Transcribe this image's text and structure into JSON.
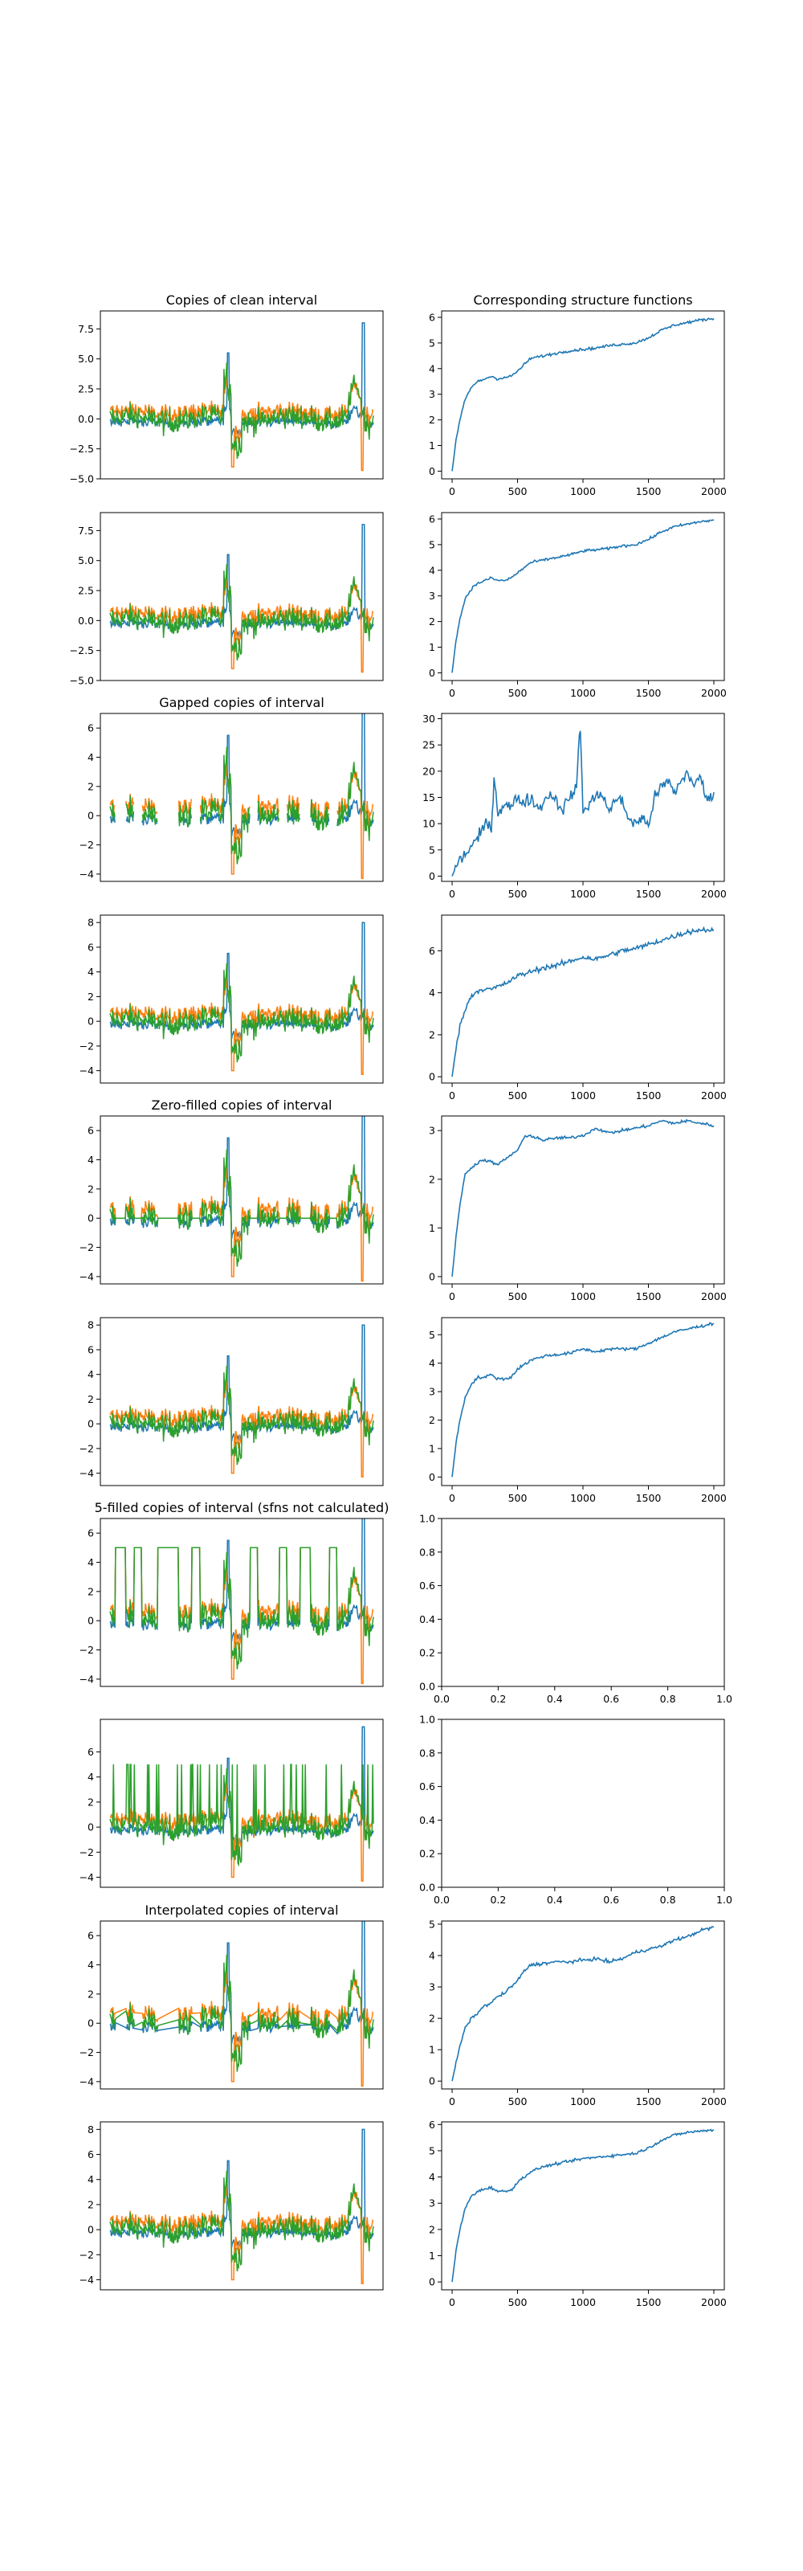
{
  "colors": {
    "series": [
      "#1f77b4",
      "#ff7f0e",
      "#2ca02c"
    ],
    "line": "#1f77b4",
    "axes": "#000000"
  },
  "chart_data": [
    {
      "type": "line",
      "title": "Copies of clean interval",
      "column": "left",
      "ylim": [
        -5,
        9
      ],
      "yticks": [
        -5.0,
        -2.5,
        0.0,
        2.5,
        5.0,
        7.5
      ],
      "yticklabels": [
        "−5.0",
        "−2.5",
        "0.0",
        "2.5",
        "5.0",
        "7.5"
      ],
      "xticks_shown": false,
      "series_count": 3,
      "style": "full",
      "grid": false
    },
    {
      "type": "line",
      "title": "Corresponding structure functions",
      "column": "right",
      "xlim": [
        -80,
        2080
      ],
      "ylim": [
        -0.3,
        6.25
      ],
      "xticks": [
        0,
        500,
        1000,
        1500,
        2000
      ],
      "xticklabels": [
        "0",
        "500",
        "1000",
        "1500",
        "2000"
      ],
      "yticks": [
        0,
        1,
        2,
        3,
        4,
        5,
        6
      ],
      "yticklabels": [
        "0",
        "1",
        "2",
        "3",
        "4",
        "5",
        "6"
      ],
      "x": [
        0,
        30,
        60,
        100,
        150,
        200,
        250,
        300,
        350,
        400,
        450,
        500,
        600,
        700,
        800,
        900,
        1000,
        1100,
        1200,
        1300,
        1400,
        1500,
        1600,
        1700,
        1800,
        1900,
        2000
      ],
      "y": [
        0,
        1.2,
        2.0,
        2.8,
        3.3,
        3.5,
        3.6,
        3.7,
        3.6,
        3.65,
        3.7,
        3.9,
        4.4,
        4.5,
        4.6,
        4.7,
        4.75,
        4.8,
        4.9,
        4.95,
        5.0,
        5.2,
        5.5,
        5.7,
        5.8,
        5.9,
        5.95
      ],
      "noise": 0.05
    },
    {
      "type": "line",
      "title": "",
      "column": "left",
      "ylim": [
        -5,
        9
      ],
      "yticks": [
        -5.0,
        -2.5,
        0.0,
        2.5,
        5.0,
        7.5
      ],
      "yticklabels": [
        "−5.0",
        "−2.5",
        "0.0",
        "2.5",
        "5.0",
        "7.5"
      ],
      "xticks_shown": false,
      "series_count": 3,
      "style": "full",
      "grid": false
    },
    {
      "type": "line",
      "title": "",
      "column": "right",
      "xlim": [
        -80,
        2080
      ],
      "ylim": [
        -0.3,
        6.25
      ],
      "xticks": [
        0,
        500,
        1000,
        1500,
        2000
      ],
      "xticklabels": [
        "0",
        "500",
        "1000",
        "1500",
        "2000"
      ],
      "yticks": [
        0,
        1,
        2,
        3,
        4,
        5,
        6
      ],
      "yticklabels": [
        "0",
        "1",
        "2",
        "3",
        "4",
        "5",
        "6"
      ],
      "x": [
        0,
        30,
        60,
        100,
        150,
        200,
        250,
        300,
        350,
        400,
        450,
        500,
        600,
        700,
        800,
        900,
        1000,
        1100,
        1200,
        1300,
        1400,
        1500,
        1600,
        1700,
        1800,
        1900,
        2000
      ],
      "y": [
        0,
        1.3,
        2.1,
        2.9,
        3.3,
        3.5,
        3.6,
        3.7,
        3.6,
        3.6,
        3.7,
        3.9,
        4.3,
        4.4,
        4.5,
        4.6,
        4.75,
        4.8,
        4.85,
        4.95,
        5.0,
        5.2,
        5.5,
        5.7,
        5.8,
        5.9,
        5.95
      ],
      "noise": 0.05
    },
    {
      "type": "line",
      "title": "Gapped copies of interval",
      "column": "left",
      "ylim": [
        -4.5,
        7
      ],
      "yticks": [
        -4,
        -2,
        0,
        2,
        4,
        6
      ],
      "yticklabels": [
        "−4",
        "−2",
        "0",
        "2",
        "4",
        "6"
      ],
      "xticks_shown": false,
      "series_count": 3,
      "style": "gapped",
      "grid": false
    },
    {
      "type": "line",
      "title": "",
      "column": "right",
      "xlim": [
        -80,
        2080
      ],
      "ylim": [
        -1,
        31
      ],
      "xticks": [
        0,
        500,
        1000,
        1500,
        2000
      ],
      "xticklabels": [
        "0",
        "500",
        "1000",
        "1500",
        "2000"
      ],
      "yticks": [
        0,
        5,
        10,
        15,
        20,
        25,
        30
      ],
      "yticklabels": [
        "0",
        "5",
        "10",
        "15",
        "20",
        "25",
        "30"
      ],
      "x": [
        0,
        50,
        100,
        150,
        200,
        250,
        300,
        320,
        350,
        400,
        450,
        500,
        550,
        600,
        650,
        700,
        750,
        800,
        850,
        900,
        950,
        980,
        1000,
        1050,
        1100,
        1150,
        1200,
        1250,
        1300,
        1350,
        1400,
        1450,
        1500,
        1550,
        1600,
        1650,
        1700,
        1750,
        1800,
        1850,
        1900,
        1950,
        2000
      ],
      "y": [
        0,
        3,
        4,
        6,
        7,
        10,
        9,
        19,
        12,
        14,
        13,
        15,
        14,
        15,
        13,
        14,
        16,
        14,
        13,
        15,
        17,
        29,
        12,
        14,
        15,
        16,
        12,
        15,
        14,
        11,
        10,
        11,
        10,
        15,
        17,
        18,
        16,
        18,
        20,
        17,
        19,
        14,
        16
      ],
      "noise": 1.2
    },
    {
      "type": "line",
      "title": "",
      "column": "left",
      "ylim": [
        -5,
        8.6
      ],
      "yticks": [
        -4,
        -2,
        0,
        2,
        4,
        6,
        8
      ],
      "yticklabels": [
        "−4",
        "−2",
        "0",
        "2",
        "4",
        "6",
        "8"
      ],
      "xticks_shown": false,
      "series_count": 3,
      "style": "full",
      "grid": false
    },
    {
      "type": "line",
      "title": "",
      "column": "right",
      "xlim": [
        -80,
        2080
      ],
      "ylim": [
        -0.3,
        7.7
      ],
      "xticks": [
        0,
        500,
        1000,
        1500,
        2000
      ],
      "xticklabels": [
        "0",
        "500",
        "1000",
        "1500",
        "2000"
      ],
      "yticks": [
        0,
        2,
        4,
        6
      ],
      "yticklabels": [
        "0",
        "2",
        "4",
        "6"
      ],
      "x": [
        0,
        30,
        60,
        100,
        150,
        200,
        250,
        300,
        350,
        400,
        450,
        500,
        600,
        700,
        800,
        900,
        1000,
        1100,
        1200,
        1300,
        1400,
        1500,
        1600,
        1700,
        1800,
        1900,
        2000
      ],
      "y": [
        0,
        1.4,
        2.4,
        3.2,
        3.9,
        4.1,
        4.2,
        4.15,
        4.3,
        4.4,
        4.6,
        4.8,
        5.0,
        5.2,
        5.3,
        5.5,
        5.7,
        5.6,
        5.8,
        6.0,
        6.1,
        6.3,
        6.5,
        6.7,
        6.9,
        7.0,
        7.0
      ],
      "noise": 0.12
    },
    {
      "type": "line",
      "title": "Zero-filled copies of interval",
      "column": "left",
      "ylim": [
        -4.5,
        7
      ],
      "yticks": [
        -4,
        -2,
        0,
        2,
        4,
        6
      ],
      "yticklabels": [
        "−4",
        "−2",
        "0",
        "2",
        "4",
        "6"
      ],
      "xticks_shown": false,
      "series_count": 3,
      "style": "zero",
      "grid": false
    },
    {
      "type": "line",
      "title": "",
      "column": "right",
      "xlim": [
        -80,
        2080
      ],
      "ylim": [
        -0.15,
        3.3
      ],
      "xticks": [
        0,
        500,
        1000,
        1500,
        2000
      ],
      "xticklabels": [
        "0",
        "500",
        "1000",
        "1500",
        "2000"
      ],
      "yticks": [
        0,
        1,
        2,
        3
      ],
      "yticklabels": [
        "0",
        "1",
        "2",
        "3"
      ],
      "x": [
        0,
        30,
        60,
        100,
        150,
        200,
        250,
        300,
        350,
        400,
        450,
        500,
        550,
        600,
        700,
        800,
        900,
        1000,
        1100,
        1200,
        1300,
        1400,
        1500,
        1600,
        1700,
        1800,
        1900,
        2000
      ],
      "y": [
        0,
        0.8,
        1.5,
        2.1,
        2.25,
        2.35,
        2.4,
        2.35,
        2.3,
        2.4,
        2.5,
        2.6,
        2.85,
        2.9,
        2.8,
        2.85,
        2.85,
        2.9,
        3.05,
        2.95,
        3.0,
        3.05,
        3.1,
        3.2,
        3.15,
        3.2,
        3.15,
        3.1
      ],
      "noise": 0.03
    },
    {
      "type": "line",
      "title": "",
      "column": "left",
      "ylim": [
        -5,
        8.6
      ],
      "yticks": [
        -4,
        -2,
        0,
        2,
        4,
        6,
        8
      ],
      "yticklabels": [
        "−4",
        "−2",
        "0",
        "2",
        "4",
        "6",
        "8"
      ],
      "xticks_shown": false,
      "series_count": 3,
      "style": "full",
      "grid": false
    },
    {
      "type": "line",
      "title": "",
      "column": "right",
      "xlim": [
        -80,
        2080
      ],
      "ylim": [
        -0.3,
        5.6
      ],
      "xticks": [
        0,
        500,
        1000,
        1500,
        2000
      ],
      "xticklabels": [
        "0",
        "500",
        "1000",
        "1500",
        "2000"
      ],
      "yticks": [
        0,
        1,
        2,
        3,
        4,
        5
      ],
      "yticklabels": [
        "0",
        "1",
        "2",
        "3",
        "4",
        "5"
      ],
      "x": [
        0,
        30,
        60,
        100,
        150,
        200,
        250,
        300,
        350,
        400,
        450,
        500,
        600,
        700,
        800,
        900,
        1000,
        1100,
        1200,
        1300,
        1400,
        1500,
        1600,
        1700,
        1800,
        1900,
        2000
      ],
      "y": [
        0,
        1.2,
        2.0,
        2.8,
        3.3,
        3.5,
        3.5,
        3.6,
        3.45,
        3.45,
        3.5,
        3.8,
        4.1,
        4.25,
        4.3,
        4.35,
        4.5,
        4.4,
        4.5,
        4.5,
        4.5,
        4.7,
        4.9,
        5.1,
        5.2,
        5.3,
        5.4
      ],
      "noise": 0.05
    },
    {
      "type": "line",
      "title": "5-filled copies of interval (sfns not calculated)",
      "column": "left",
      "ylim": [
        -4.5,
        7
      ],
      "yticks": [
        -4,
        -2,
        0,
        2,
        4,
        6
      ],
      "yticklabels": [
        "−4",
        "−2",
        "0",
        "2",
        "4",
        "6"
      ],
      "xticks_shown": false,
      "series_count": 3,
      "style": "five",
      "grid": false
    },
    {
      "type": "empty",
      "title": "",
      "column": "right",
      "xlim": [
        0,
        1
      ],
      "ylim": [
        0,
        1
      ],
      "xticks": [
        0.0,
        0.2,
        0.4,
        0.6,
        0.8,
        1.0
      ],
      "xticklabels": [
        "0.0",
        "0.2",
        "0.4",
        "0.6",
        "0.8",
        "1.0"
      ],
      "yticks": [
        0.0,
        0.2,
        0.4,
        0.6,
        0.8,
        1.0
      ],
      "yticklabels": [
        "0.0",
        "0.2",
        "0.4",
        "0.6",
        "0.8",
        "1.0"
      ]
    },
    {
      "type": "line",
      "title": "",
      "column": "left",
      "ylim": [
        -4.8,
        8.6
      ],
      "yticks": [
        -4,
        -2,
        0,
        2,
        4,
        6
      ],
      "yticklabels": [
        "−4",
        "−2",
        "0",
        "2",
        "4",
        "6"
      ],
      "xticks_shown": false,
      "series_count": 3,
      "style": "five_spikes",
      "grid": false
    },
    {
      "type": "empty",
      "title": "",
      "column": "right",
      "xlim": [
        0,
        1
      ],
      "ylim": [
        0,
        1
      ],
      "xticks": [
        0.0,
        0.2,
        0.4,
        0.6,
        0.8,
        1.0
      ],
      "xticklabels": [
        "0.0",
        "0.2",
        "0.4",
        "0.6",
        "0.8",
        "1.0"
      ],
      "yticks": [
        0.0,
        0.2,
        0.4,
        0.6,
        0.8,
        1.0
      ],
      "yticklabels": [
        "0.0",
        "0.2",
        "0.4",
        "0.6",
        "0.8",
        "1.0"
      ]
    },
    {
      "type": "line",
      "title": "Interpolated copies of interval",
      "column": "left",
      "ylim": [
        -4.5,
        7
      ],
      "yticks": [
        -4,
        -2,
        0,
        2,
        4,
        6
      ],
      "yticklabels": [
        "−4",
        "−2",
        "0",
        "2",
        "4",
        "6"
      ],
      "xticks_shown": false,
      "series_count": 3,
      "style": "interp",
      "grid": false
    },
    {
      "type": "line",
      "title": "",
      "column": "right",
      "xlim": [
        -80,
        2080
      ],
      "ylim": [
        -0.25,
        5.1
      ],
      "xticks": [
        0,
        500,
        1000,
        1500,
        2000
      ],
      "xticklabels": [
        "0",
        "500",
        "1000",
        "1500",
        "2000"
      ],
      "yticks": [
        0,
        1,
        2,
        3,
        4,
        5
      ],
      "yticklabels": [
        "0",
        "1",
        "2",
        "3",
        "4",
        "5"
      ],
      "x": [
        0,
        30,
        60,
        100,
        150,
        200,
        250,
        300,
        350,
        400,
        450,
        500,
        550,
        600,
        700,
        800,
        900,
        1000,
        1100,
        1200,
        1300,
        1400,
        1500,
        1600,
        1700,
        1800,
        1900,
        2000
      ],
      "y": [
        0,
        0.6,
        1.1,
        1.7,
        2.0,
        2.2,
        2.4,
        2.5,
        2.7,
        2.8,
        3.0,
        3.2,
        3.5,
        3.7,
        3.75,
        3.8,
        3.8,
        3.85,
        3.9,
        3.8,
        3.9,
        4.1,
        4.2,
        4.3,
        4.5,
        4.6,
        4.8,
        4.9
      ],
      "noise": 0.05
    },
    {
      "type": "line",
      "title": "",
      "column": "left",
      "ylim": [
        -4.8,
        8.6
      ],
      "yticks": [
        -4,
        -2,
        0,
        2,
        4,
        6,
        8
      ],
      "yticklabels": [
        "−4",
        "−2",
        "0",
        "2",
        "4",
        "6",
        "8"
      ],
      "xticks_shown": false,
      "series_count": 3,
      "style": "full",
      "grid": false
    },
    {
      "type": "line",
      "title": "",
      "column": "right",
      "xlim": [
        -80,
        2080
      ],
      "ylim": [
        -0.3,
        6.1
      ],
      "xticks": [
        0,
        500,
        1000,
        1500,
        2000
      ],
      "xticklabels": [
        "0",
        "500",
        "1000",
        "1500",
        "2000"
      ],
      "yticks": [
        0,
        1,
        2,
        3,
        4,
        5,
        6
      ],
      "yticklabels": [
        "0",
        "1",
        "2",
        "3",
        "4",
        "5",
        "6"
      ],
      "x": [
        0,
        30,
        60,
        100,
        150,
        200,
        250,
        300,
        350,
        400,
        450,
        500,
        600,
        700,
        800,
        900,
        1000,
        1100,
        1200,
        1300,
        1400,
        1500,
        1600,
        1700,
        1800,
        1900,
        2000
      ],
      "y": [
        0,
        1.2,
        2.0,
        2.8,
        3.3,
        3.45,
        3.55,
        3.6,
        3.45,
        3.45,
        3.5,
        3.8,
        4.2,
        4.4,
        4.5,
        4.6,
        4.7,
        4.75,
        4.8,
        4.85,
        4.9,
        5.1,
        5.4,
        5.6,
        5.7,
        5.75,
        5.8
      ],
      "noise": 0.05
    }
  ]
}
